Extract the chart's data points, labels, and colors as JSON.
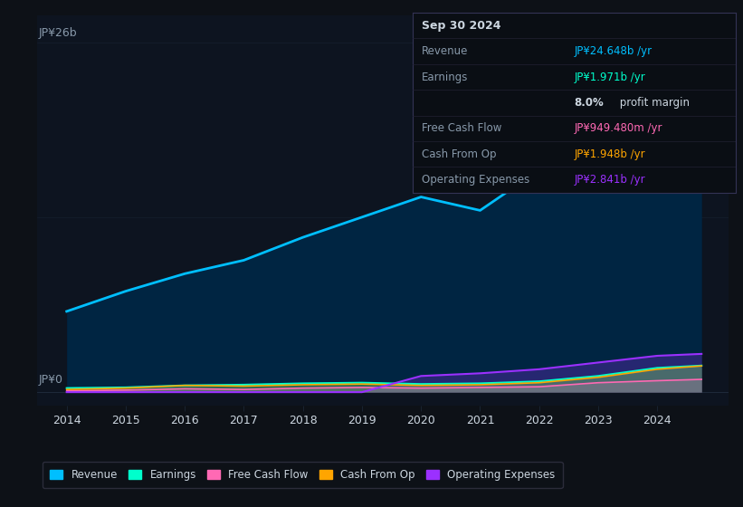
{
  "bg_color": "#0d1117",
  "plot_bg_color": "#0d1420",
  "years": [
    2014,
    2015,
    2016,
    2017,
    2018,
    2019,
    2020,
    2021,
    2022,
    2023,
    2024,
    2024.75
  ],
  "revenue": [
    6.0,
    7.5,
    8.8,
    9.8,
    11.5,
    13.0,
    14.5,
    13.5,
    16.5,
    20.0,
    24.0,
    24.648
  ],
  "earnings": [
    0.3,
    0.35,
    0.5,
    0.55,
    0.65,
    0.7,
    0.6,
    0.65,
    0.8,
    1.2,
    1.8,
    1.971
  ],
  "free_cash_flow": [
    0.1,
    0.15,
    0.25,
    0.2,
    0.3,
    0.35,
    0.3,
    0.35,
    0.4,
    0.7,
    0.85,
    0.9495
  ],
  "cash_from_op": [
    0.2,
    0.3,
    0.5,
    0.45,
    0.55,
    0.6,
    0.5,
    0.55,
    0.7,
    1.1,
    1.7,
    1.948
  ],
  "operating_expenses": [
    0.0,
    0.0,
    0.0,
    0.0,
    0.0,
    0.0,
    1.2,
    1.4,
    1.7,
    2.2,
    2.7,
    2.841
  ],
  "revenue_color": "#00bfff",
  "earnings_color": "#00ffcc",
  "free_cash_flow_color": "#ff69b4",
  "cash_from_op_color": "#ffa500",
  "operating_expenses_color": "#9b30ff",
  "ylabel_top": "JP¥26b",
  "ylabel_bottom": "JP¥0",
  "xlim_left": 2013.5,
  "xlim_right": 2025.2,
  "ylim_bottom": -1.0,
  "ylim_top": 28.0,
  "info_title": "Sep 30 2024",
  "info_revenue_label": "Revenue",
  "info_revenue_value": "JP¥24.648b /yr",
  "info_revenue_color": "#00bfff",
  "info_earnings_label": "Earnings",
  "info_earnings_value": "JP¥1.971b /yr",
  "info_earnings_color": "#00ffcc",
  "info_fcf_label": "Free Cash Flow",
  "info_fcf_value": "JP¥949.480m /yr",
  "info_fcf_color": "#ff69b4",
  "info_cashop_label": "Cash From Op",
  "info_cashop_value": "JP¥1.948b /yr",
  "info_cashop_color": "#ffa500",
  "info_opex_label": "Operating Expenses",
  "info_opex_value": "JP¥2.841b /yr",
  "info_opex_color": "#9b30ff",
  "legend_labels": [
    "Revenue",
    "Earnings",
    "Free Cash Flow",
    "Cash From Op",
    "Operating Expenses"
  ],
  "legend_colors": [
    "#00bfff",
    "#00ffcc",
    "#ff69b4",
    "#ffa500",
    "#9b30ff"
  ],
  "grid_color": "#1e2a3a",
  "text_color_dim": "#8899aa",
  "text_color_bright": "#ccd6e0"
}
